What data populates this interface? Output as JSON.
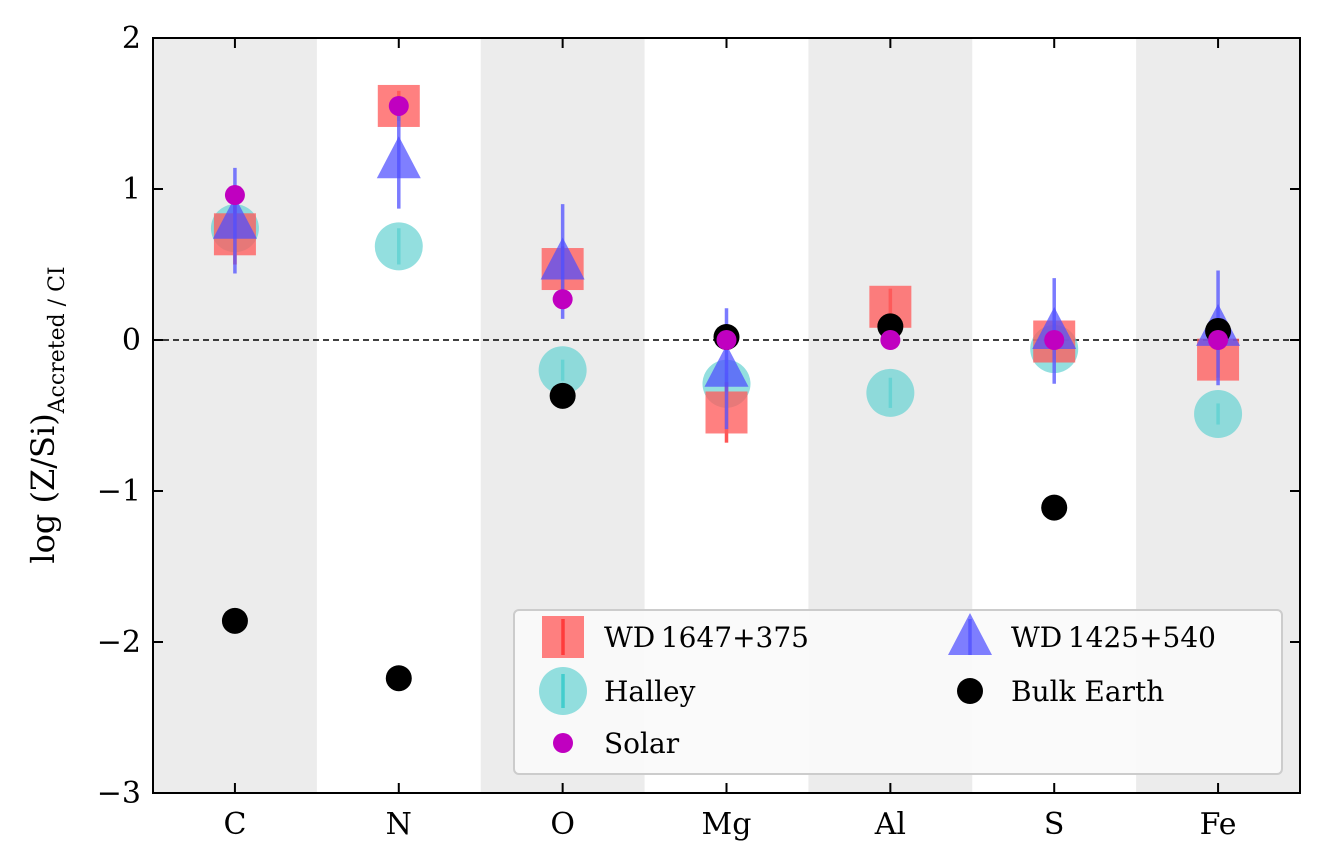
{
  "chart_data": {
    "type": "scatter",
    "categories": [
      "C",
      "N",
      "O",
      "Mg",
      "Al",
      "S",
      "Fe"
    ],
    "ylabel_main": "log (Z/Si)",
    "ylabel_sub": "Accreted / CI",
    "ylim": [
      -3,
      2
    ],
    "yticks": [
      2,
      1,
      0,
      -1,
      -2,
      -3
    ],
    "ytick_labels": [
      "2",
      "1",
      "0",
      "−1",
      "−2",
      "−3"
    ],
    "reference_line": {
      "y": 0,
      "style": "dashed"
    },
    "shaded_categories": [
      "C",
      "O",
      "Al",
      "Fe"
    ],
    "legend_position": "lower right",
    "series": [
      {
        "name": "WD 1647+375",
        "marker": "square",
        "color": "#ff5c5c",
        "errcolor": "#ff2a2a",
        "values": [
          0.7,
          1.55,
          0.47,
          -0.48,
          0.22,
          -0.01,
          -0.13
        ],
        "err": [
          0.2,
          0.1,
          0.15,
          0.2,
          0.12,
          0.12,
          0.12
        ]
      },
      {
        "name": "WD 1425+540",
        "marker": "triangle",
        "color": "#4d4dff",
        "errcolor": "#5a5aff",
        "values": [
          0.79,
          1.19,
          0.52,
          -0.19,
          null,
          0.06,
          0.08
        ],
        "err": [
          0.35,
          0.32,
          0.38,
          0.4,
          null,
          0.35,
          0.38
        ]
      },
      {
        "name": "Halley",
        "marker": "circle-large",
        "color": "#6fd4d4",
        "errcolor": "#2fc8c8",
        "values": [
          0.74,
          0.62,
          -0.2,
          -0.29,
          -0.35,
          -0.06,
          -0.49
        ],
        "err": [
          0.08,
          0.12,
          0.07,
          0.07,
          0.1,
          0.07,
          0.07
        ]
      },
      {
        "name": "Solar",
        "marker": "circle-small",
        "color": "#c000c0",
        "errcolor": "#c000c0",
        "values": [
          0.96,
          1.55,
          0.27,
          0.0,
          0.0,
          0.0,
          0.0
        ],
        "err": [
          null,
          null,
          null,
          null,
          null,
          null,
          null
        ]
      },
      {
        "name": "Bulk Earth",
        "marker": "circle-medium",
        "color": "#000000",
        "errcolor": "#000000",
        "values": [
          -1.86,
          -2.24,
          -0.37,
          0.02,
          0.09,
          -1.11,
          0.06
        ],
        "err": [
          null,
          null,
          null,
          null,
          null,
          null,
          null
        ]
      }
    ],
    "legend_entries": [
      {
        "series": 0,
        "label": "WD 1647+375",
        "column": 0,
        "row": 0
      },
      {
        "series": 2,
        "label": "Halley",
        "column": 0,
        "row": 1
      },
      {
        "series": 3,
        "label": "Solar",
        "column": 0,
        "row": 2
      },
      {
        "series": 1,
        "label": "WD 1425+540",
        "column": 1,
        "row": 0
      },
      {
        "series": 4,
        "label": "Bulk Earth",
        "column": 1,
        "row": 1
      }
    ],
    "colors": {
      "shade": "#ececec",
      "legend_bg": "#fafafa",
      "legend_border": "#cccccc"
    }
  }
}
